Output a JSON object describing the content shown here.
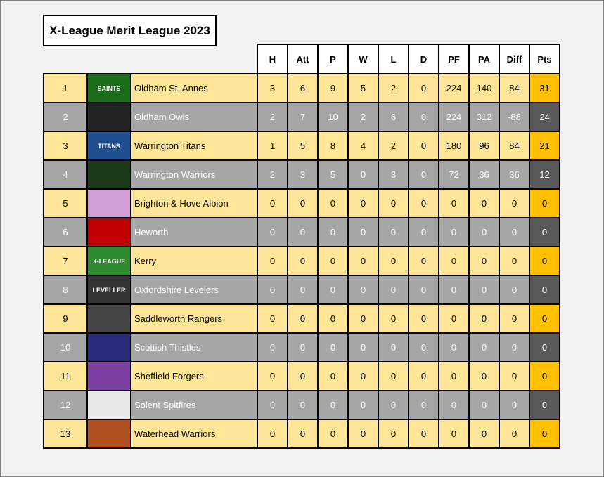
{
  "title": "X-League Merit League 2023",
  "headers": [
    "H",
    "Att",
    "P",
    "W",
    "L",
    "D",
    "PF",
    "PA",
    "Diff",
    "Pts"
  ],
  "rows": [
    {
      "pos": "1",
      "team": "Oldham St. Annes",
      "logo_text": "SAINTS",
      "logo_color": "#1a6b1a",
      "vals": [
        "3",
        "6",
        "9",
        "5",
        "2",
        "0",
        "224",
        "140",
        "84",
        "31"
      ]
    },
    {
      "pos": "2",
      "team": "Oldham Owls",
      "logo_text": "",
      "logo_color": "#222222",
      "vals": [
        "2",
        "7",
        "10",
        "2",
        "6",
        "0",
        "224",
        "312",
        "-88",
        "24"
      ]
    },
    {
      "pos": "3",
      "team": "Warrington Titans",
      "logo_text": "TITANS",
      "logo_color": "#1f4e8c",
      "vals": [
        "1",
        "5",
        "8",
        "4",
        "2",
        "0",
        "180",
        "96",
        "84",
        "21"
      ]
    },
    {
      "pos": "4",
      "team": "Warrington Warriors",
      "logo_text": "",
      "logo_color": "#1a3a1a",
      "vals": [
        "2",
        "3",
        "5",
        "0",
        "3",
        "0",
        "72",
        "36",
        "36",
        "12"
      ]
    },
    {
      "pos": "5",
      "team": "Brighton & Hove Albion",
      "logo_text": "",
      "logo_color": "#d4a0d8",
      "vals": [
        "0",
        "0",
        "0",
        "0",
        "0",
        "0",
        "0",
        "0",
        "0",
        "0"
      ]
    },
    {
      "pos": "6",
      "team": "Heworth",
      "logo_text": "",
      "logo_color": "#c00000",
      "vals": [
        "0",
        "0",
        "0",
        "0",
        "0",
        "0",
        "0",
        "0",
        "0",
        "0"
      ]
    },
    {
      "pos": "7",
      "team": "Kerry",
      "logo_text": "X-LEAGUE",
      "logo_color": "#2e8b2e",
      "vals": [
        "0",
        "0",
        "0",
        "0",
        "0",
        "0",
        "0",
        "0",
        "0",
        "0"
      ]
    },
    {
      "pos": "8",
      "team": "Oxfordshire Levelers",
      "logo_text": "LEVELLER",
      "logo_color": "#333333",
      "vals": [
        "0",
        "0",
        "0",
        "0",
        "0",
        "0",
        "0",
        "0",
        "0",
        "0"
      ]
    },
    {
      "pos": "9",
      "team": "Saddleworth Rangers",
      "logo_text": "",
      "logo_color": "#444444",
      "vals": [
        "0",
        "0",
        "0",
        "0",
        "0",
        "0",
        "0",
        "0",
        "0",
        "0"
      ]
    },
    {
      "pos": "10",
      "team": "Scottish Thistles",
      "logo_text": "",
      "logo_color": "#2a2a7a",
      "vals": [
        "0",
        "0",
        "0",
        "0",
        "0",
        "0",
        "0",
        "0",
        "0",
        "0"
      ]
    },
    {
      "pos": "11",
      "team": "Sheffield Forgers",
      "logo_text": "",
      "logo_color": "#7a3fa0",
      "vals": [
        "0",
        "0",
        "0",
        "0",
        "0",
        "0",
        "0",
        "0",
        "0",
        "0"
      ]
    },
    {
      "pos": "12",
      "team": "Solent Spitfires",
      "logo_text": "",
      "logo_color": "#e8e8e8",
      "vals": [
        "0",
        "0",
        "0",
        "0",
        "0",
        "0",
        "0",
        "0",
        "0",
        "0"
      ]
    },
    {
      "pos": "13",
      "team": "Waterhead Warriors",
      "logo_text": "",
      "logo_color": "#b05020",
      "vals": [
        "0",
        "0",
        "0",
        "0",
        "0",
        "0",
        "0",
        "0",
        "0",
        "0"
      ]
    }
  ]
}
